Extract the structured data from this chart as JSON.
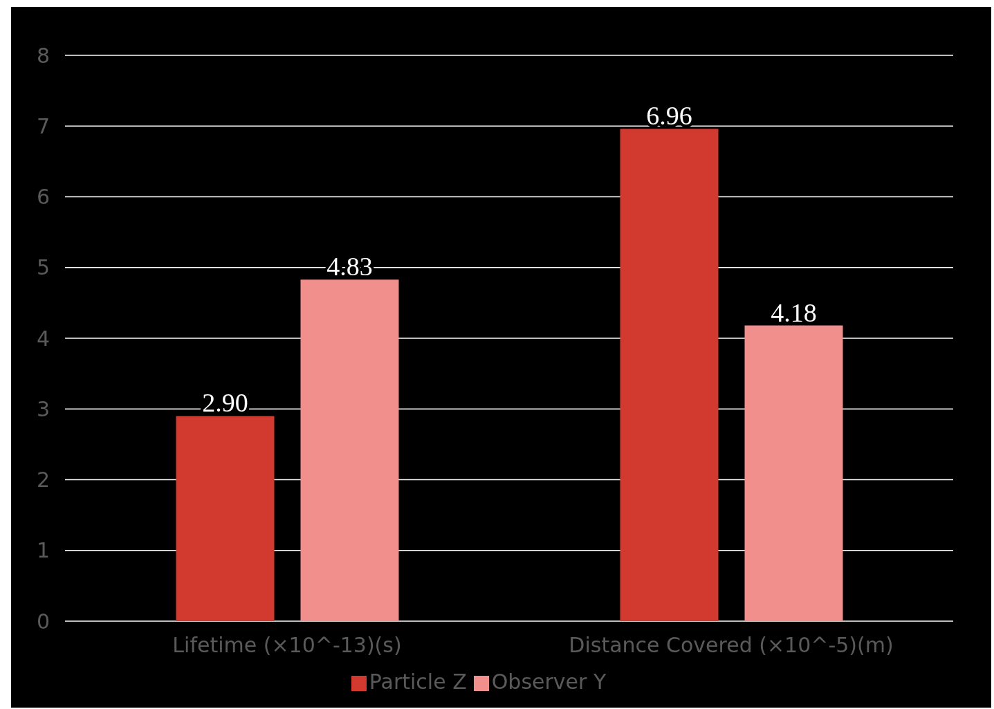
{
  "chart_data": {
    "type": "bar",
    "categories": [
      "Lifetime (×10^-13)(s)",
      "Distance Covered (×10^-5)(m)"
    ],
    "series": [
      {
        "name": "Particle Z",
        "color": "#d33a2f",
        "values": [
          2.9,
          6.96
        ],
        "value_labels": [
          "2.90",
          "6.96"
        ]
      },
      {
        "name": "Observer Y",
        "color": "#f18f8c",
        "values": [
          4.83,
          4.18
        ],
        "value_labels": [
          "4.83",
          "4.18"
        ]
      }
    ],
    "ylim": [
      0,
      8
    ],
    "yticks": [
      0,
      1,
      2,
      3,
      4,
      5,
      6,
      7,
      8
    ],
    "grid": "y",
    "legend": "bottom"
  }
}
